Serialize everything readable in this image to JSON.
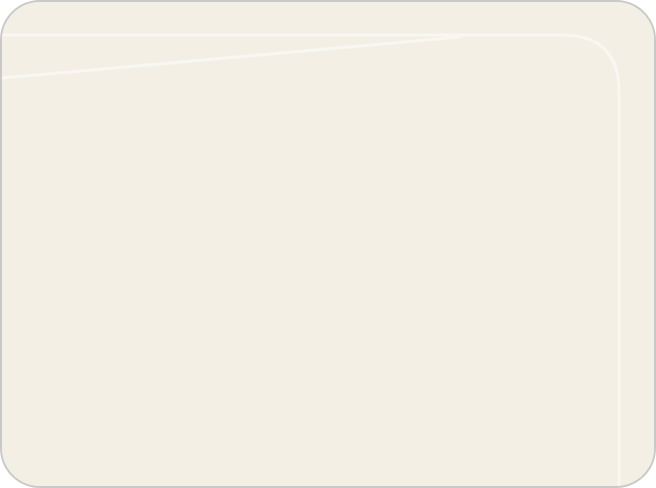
{
  "colors": {
    "panel_background": "#f3efe4",
    "panel_border": "#c9c9c7",
    "highlight_stroke": "#f9f7f1"
  }
}
